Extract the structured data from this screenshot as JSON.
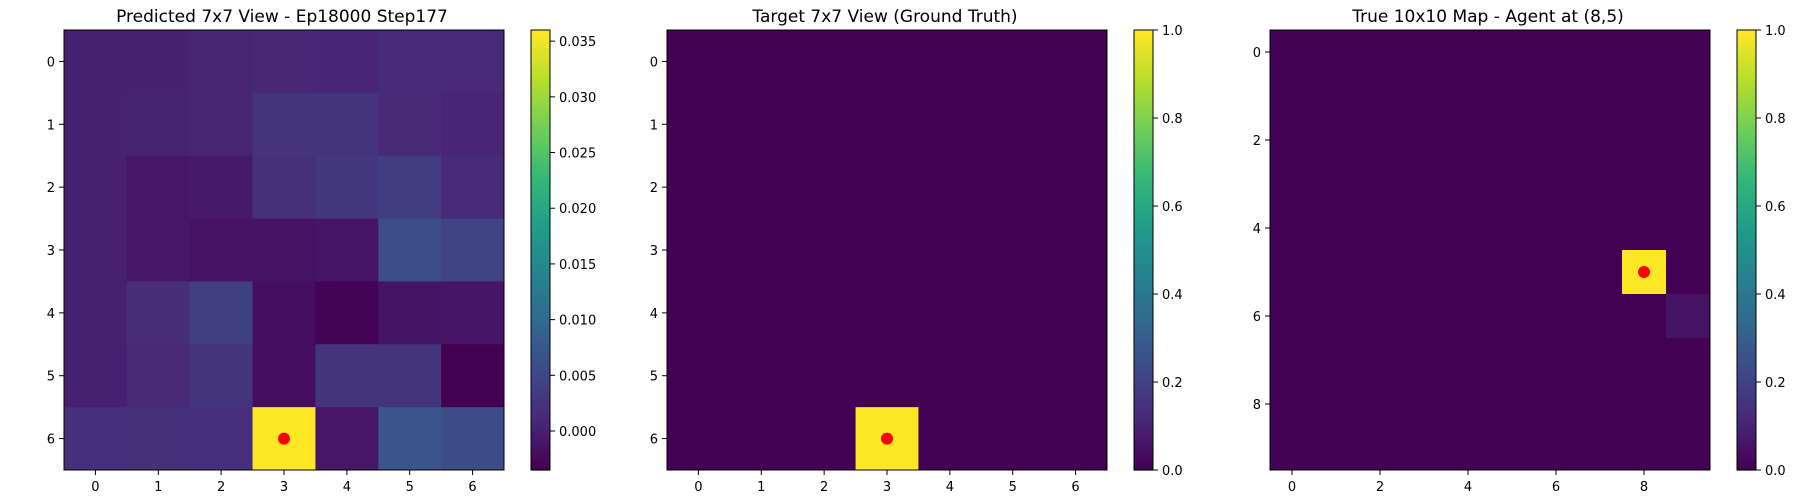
{
  "chart_data": [
    {
      "type": "heatmap",
      "title": "Predicted 7x7 View - Ep18000 Step177",
      "rows": 7,
      "cols": 7,
      "xticks": [
        0,
        1,
        2,
        3,
        4,
        5,
        6
      ],
      "yticks": [
        0,
        1,
        2,
        3,
        4,
        5,
        6
      ],
      "values": [
        [
          0.0,
          0.0001,
          0.0004,
          0.0008,
          0.0006,
          0.0012,
          0.0009
        ],
        [
          0.0002,
          0.0003,
          0.0005,
          0.0025,
          0.0025,
          0.0011,
          0.0006
        ],
        [
          0.0,
          -0.001,
          -0.0008,
          0.002,
          0.003,
          0.0035,
          0.0012
        ],
        [
          0.0,
          -0.001,
          -0.0016,
          -0.0015,
          -0.0012,
          0.006,
          0.0045
        ],
        [
          0.0,
          0.0015,
          0.004,
          -0.002,
          -0.0032,
          -0.0014,
          -0.0012
        ],
        [
          0.0,
          0.001,
          0.0025,
          -0.002,
          0.0025,
          0.0025,
          -0.004
        ],
        [
          0.0018,
          0.002,
          0.0018,
          0.036,
          -0.001,
          0.007,
          0.0055
        ]
      ],
      "colorbar": {
        "min": -0.0035,
        "max": 0.036,
        "ticks": [
          0.0,
          0.005,
          0.01,
          0.015,
          0.02,
          0.025,
          0.03,
          0.035
        ],
        "labels": [
          "0.000",
          "0.005",
          "0.010",
          "0.015",
          "0.020",
          "0.025",
          "0.030",
          "0.035"
        ]
      },
      "marker": {
        "x": 3,
        "y": 6,
        "color": "#ff0000"
      }
    },
    {
      "type": "heatmap",
      "title": "Target 7x7 View (Ground Truth)",
      "rows": 7,
      "cols": 7,
      "xticks": [
        0,
        1,
        2,
        3,
        4,
        5,
        6
      ],
      "yticks": [
        0,
        1,
        2,
        3,
        4,
        5,
        6
      ],
      "values": [
        [
          0,
          0,
          0,
          0,
          0,
          0,
          0
        ],
        [
          0,
          0,
          0,
          0,
          0,
          0,
          0
        ],
        [
          0,
          0,
          0,
          0,
          0,
          0,
          0
        ],
        [
          0,
          0,
          0,
          0,
          0,
          0,
          0
        ],
        [
          0,
          0,
          0,
          0,
          0,
          0,
          0
        ],
        [
          0,
          0,
          0,
          0,
          0,
          0,
          0
        ],
        [
          0,
          0,
          0,
          1,
          0,
          0,
          0
        ]
      ],
      "colorbar": {
        "min": 0,
        "max": 1,
        "ticks": [
          0,
          0.2,
          0.4,
          0.6,
          0.8,
          1.0
        ],
        "labels": [
          "0.0",
          "0.2",
          "0.4",
          "0.6",
          "0.8",
          "1.0"
        ]
      },
      "marker": {
        "x": 3,
        "y": 6,
        "color": "#ff0000"
      }
    },
    {
      "type": "heatmap",
      "title": "True 10x10 Map - Agent at (8,5)",
      "rows": 10,
      "cols": 10,
      "xticks": [
        0,
        2,
        4,
        6,
        8
      ],
      "yticks": [
        0,
        2,
        4,
        6,
        8
      ],
      "values": [
        [
          0,
          0,
          0,
          0,
          0,
          0,
          0,
          0,
          0,
          0
        ],
        [
          0,
          0,
          0,
          0,
          0,
          0,
          0,
          0,
          0,
          0
        ],
        [
          0,
          0,
          0,
          0,
          0,
          0,
          0,
          0,
          0,
          0
        ],
        [
          0,
          0,
          0,
          0,
          0,
          0,
          0,
          0,
          0,
          0
        ],
        [
          0,
          0,
          0,
          0,
          0,
          0,
          0,
          0,
          0,
          0
        ],
        [
          0,
          0,
          0,
          0,
          0,
          0,
          0,
          0,
          1,
          0
        ],
        [
          0,
          0,
          0,
          0,
          0,
          0,
          0,
          0,
          0,
          0.05
        ],
        [
          0,
          0,
          0,
          0,
          0,
          0,
          0,
          0,
          0,
          0
        ],
        [
          0,
          0,
          0,
          0,
          0,
          0,
          0,
          0,
          0,
          0
        ],
        [
          0,
          0,
          0,
          0,
          0,
          0,
          0,
          0,
          0,
          0
        ]
      ],
      "colorbar": {
        "min": 0,
        "max": 1,
        "ticks": [
          0,
          0.2,
          0.4,
          0.6,
          0.8,
          1.0
        ],
        "labels": [
          "0.0",
          "0.2",
          "0.4",
          "0.6",
          "0.8",
          "1.0"
        ]
      },
      "marker": {
        "x": 8,
        "y": 5,
        "color": "#ff0000"
      }
    }
  ]
}
